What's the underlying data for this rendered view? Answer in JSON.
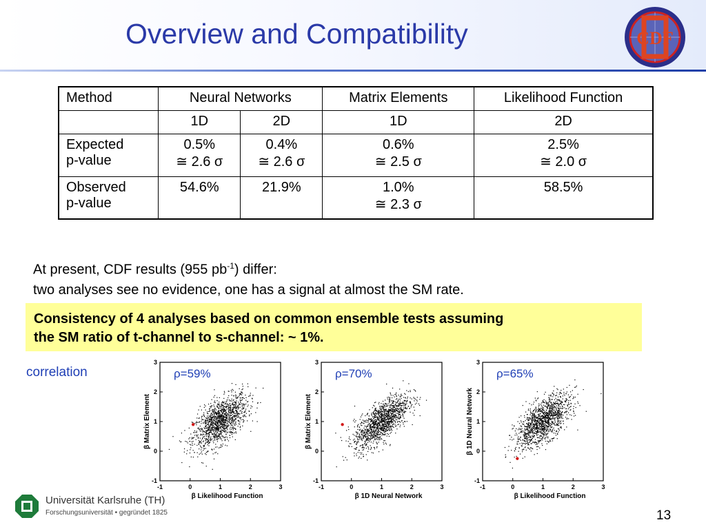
{
  "slide": {
    "title": "Overview and Compatibility",
    "page_number": "13"
  },
  "table": {
    "header": [
      "Method",
      "Neural Networks",
      "Matrix Elements",
      "Likelihood Function"
    ],
    "subheader": [
      "",
      "1D",
      "2D",
      "1D",
      "2D"
    ],
    "rows": [
      {
        "label1": "Expected",
        "label2": "p-value",
        "cells": [
          {
            "v": "0.5%",
            "s": "≅ 2.6 σ"
          },
          {
            "v": "0.4%",
            "s": "≅ 2.6 σ"
          },
          {
            "v": "0.6%",
            "s": "≅ 2.5 σ"
          },
          {
            "v": "2.5%",
            "s": "≅ 2.0 σ"
          }
        ]
      },
      {
        "label1": "Observed",
        "label2": "p-value",
        "cells": [
          {
            "v": "54.6%",
            "s": ""
          },
          {
            "v": "21.9%",
            "s": ""
          },
          {
            "v": "1.0%",
            "s": "≅ 2.3 σ"
          },
          {
            "v": "58.5%",
            "s": ""
          }
        ]
      }
    ]
  },
  "text": {
    "line1_pre": "At present, CDF results (955 pb",
    "line1_sup": "-1",
    "line1_post": ") differ:",
    "line2": "two analyses see no evidence, one has a signal at almost the SM rate."
  },
  "highlight": {
    "line1": "Consistency of 4 analyses based on common ensemble tests assuming",
    "line2": "the SM ratio of t-channel to s-channel:  ~ 1%."
  },
  "correlation": {
    "label": "correlation",
    "plots": [
      {
        "rho": "ρ=59%",
        "xlabel": "β Likelihood Function",
        "ylabel": "β Matrix Element",
        "r": 0.59,
        "red_point": [
          0.1,
          0.9
        ]
      },
      {
        "rho": "ρ=70%",
        "xlabel": "β 1D Neural Network",
        "ylabel": "β Matrix Element",
        "r": 0.7,
        "red_point": [
          -0.3,
          0.9
        ]
      },
      {
        "rho": "ρ=65%",
        "xlabel": "β Likelihood Function",
        "ylabel": "β 1D Neural Network",
        "r": 0.65,
        "red_point": [
          0.15,
          -0.25
        ]
      }
    ],
    "x_ticks": [
      "-1",
      "0",
      "1",
      "2",
      "3"
    ],
    "y_ticks": [
      "-1",
      "0",
      "1",
      "2",
      "3"
    ],
    "xlim": [
      -1,
      3
    ],
    "ylim": [
      -1,
      3
    ]
  },
  "footer": {
    "university": "Universität Karlsruhe (TH)",
    "sub": "Forschungsuniversität • gegründet 1825"
  },
  "colors": {
    "title": "#2b3aa8",
    "highlight_bg": "#ffff99",
    "correlation_label": "#1f3fb5",
    "rho": "#1f3fb5",
    "red_point": "#d21a1a"
  }
}
